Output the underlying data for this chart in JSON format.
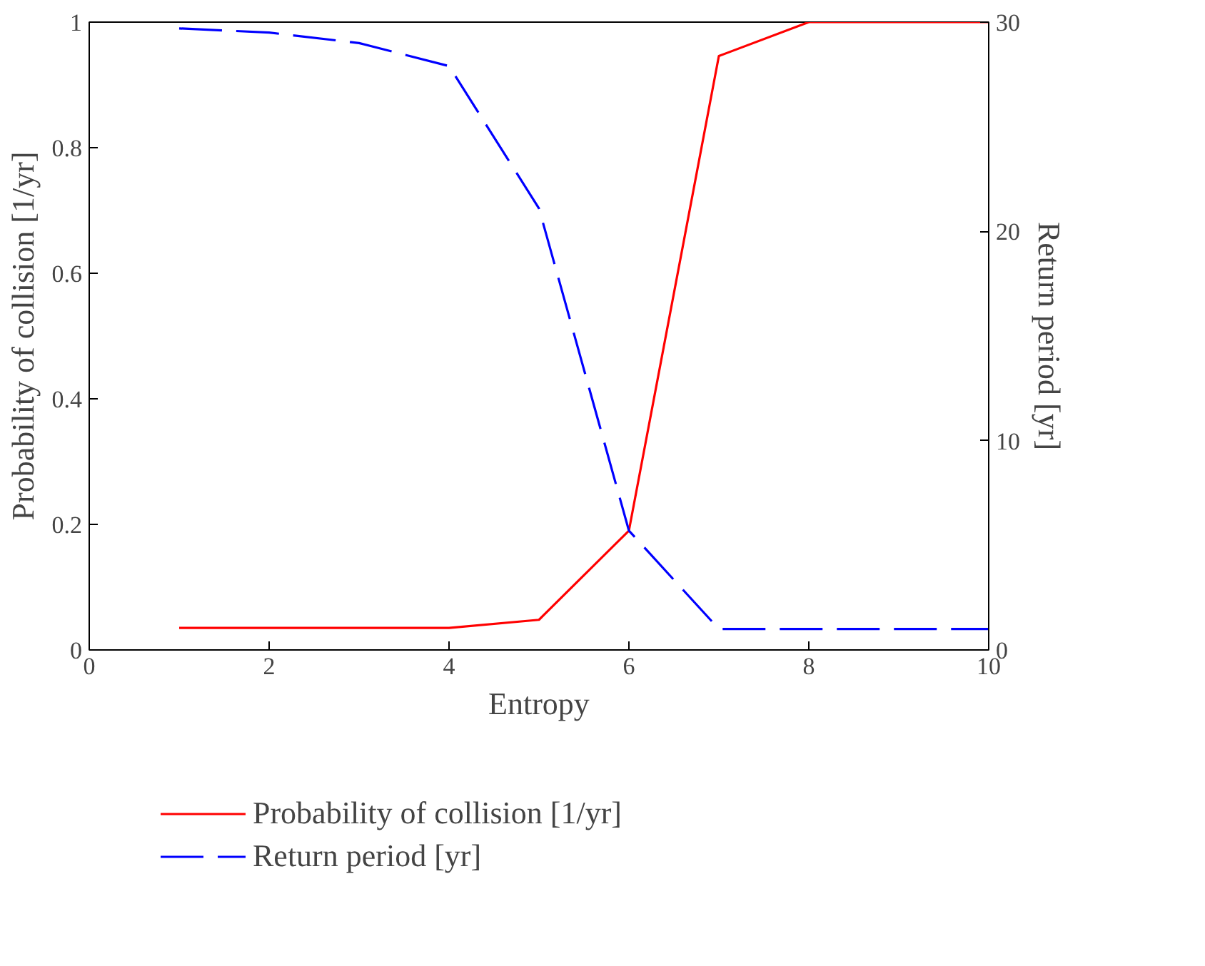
{
  "chart_data": {
    "type": "line",
    "xlabel": "Entropy",
    "ylabel": "Probability of collision [1/yr]",
    "y2label": "Return period [yr]",
    "x": [
      1,
      2,
      3,
      4,
      5,
      6,
      7,
      8,
      9,
      10
    ],
    "series": [
      {
        "name": "Probability of collision [1/yr]",
        "color": "#ff0000",
        "line_style": "solid",
        "values": [
          0.035,
          0.035,
          0.035,
          0.035,
          0.048,
          0.19,
          0.946,
          1,
          1,
          1
        ]
      },
      {
        "name": "Return period [yr]",
        "color": "#0000ff",
        "line_style": "dashed",
        "axis": "y2",
        "values": [
          29.7,
          29.5,
          29.0,
          27.9,
          21.1,
          5.7,
          1.0,
          1.0,
          1.0,
          1.0
        ]
      }
    ],
    "xlim": [
      0,
      10
    ],
    "xticks": [
      0,
      2,
      4,
      6,
      8,
      10
    ],
    "ylim": [
      0,
      1
    ],
    "yticks": [
      0,
      0.2,
      0.4,
      0.6,
      0.8,
      1
    ],
    "y2lim": [
      0,
      30
    ],
    "y2ticks": [
      0,
      10,
      20,
      30
    ],
    "grid": false,
    "legend": "bottom",
    "marker": "none"
  }
}
